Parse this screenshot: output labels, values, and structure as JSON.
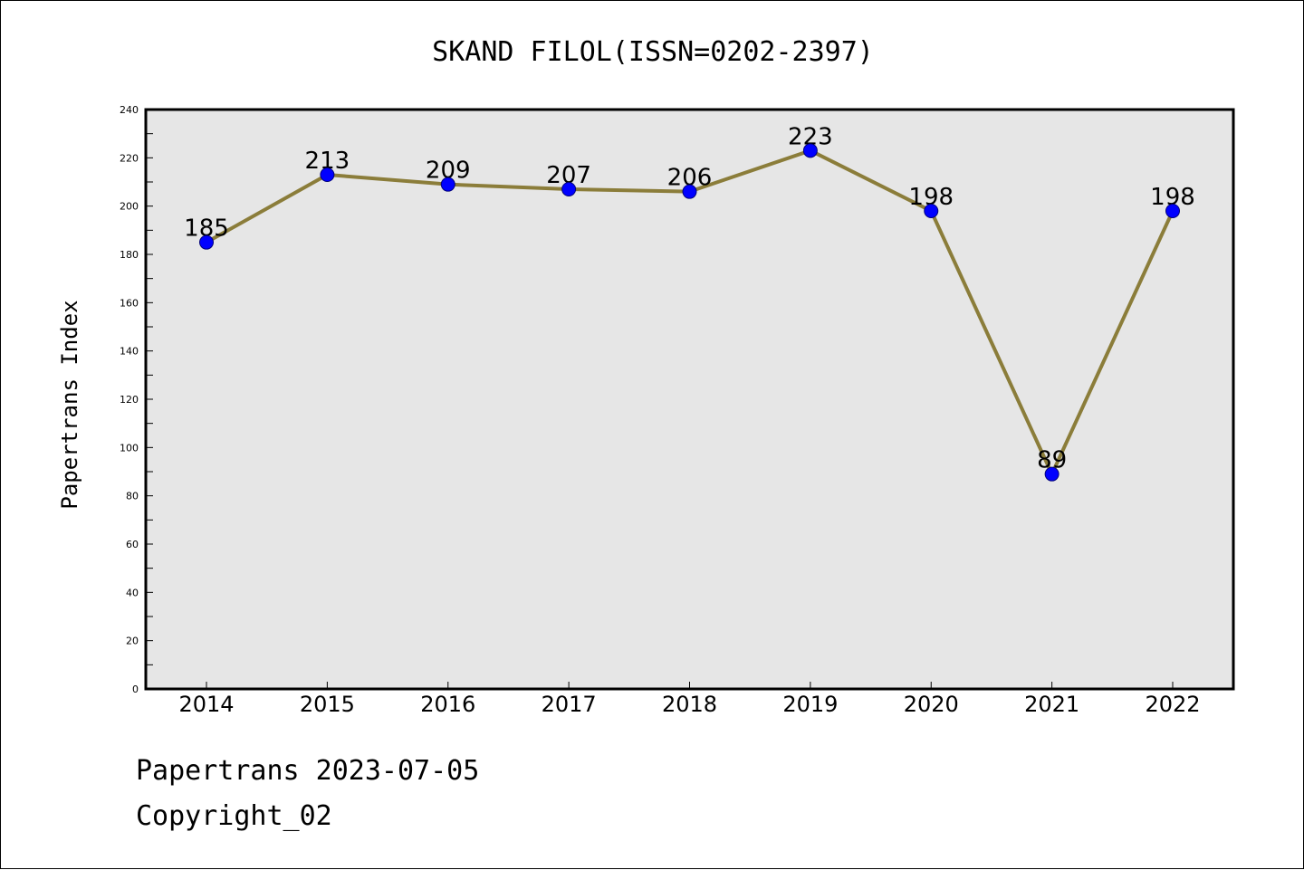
{
  "chart_data": {
    "type": "line",
    "title": "SKAND FILOL(ISSN=0202-2397)",
    "xlabel": "",
    "ylabel": "Papertrans Index",
    "categories": [
      "2014",
      "2015",
      "2016",
      "2017",
      "2018",
      "2019",
      "2020",
      "2021",
      "2022"
    ],
    "series": [
      {
        "values": [
          185,
          213,
          209,
          207,
          206,
          223,
          198,
          89,
          198
        ]
      }
    ],
    "ylim": [
      0,
      240
    ],
    "yticks": [
      0,
      20,
      40,
      60,
      80,
      100,
      120,
      140,
      160,
      180,
      200,
      220,
      240
    ],
    "data_labels": true,
    "grid": false,
    "colors": {
      "plot_background": "#e6e6e6",
      "line": "#8b7d3a",
      "marker": "#0000ff"
    }
  },
  "footer": {
    "line1": "Papertrans 2023-07-05",
    "line2": "Copyright_02"
  }
}
